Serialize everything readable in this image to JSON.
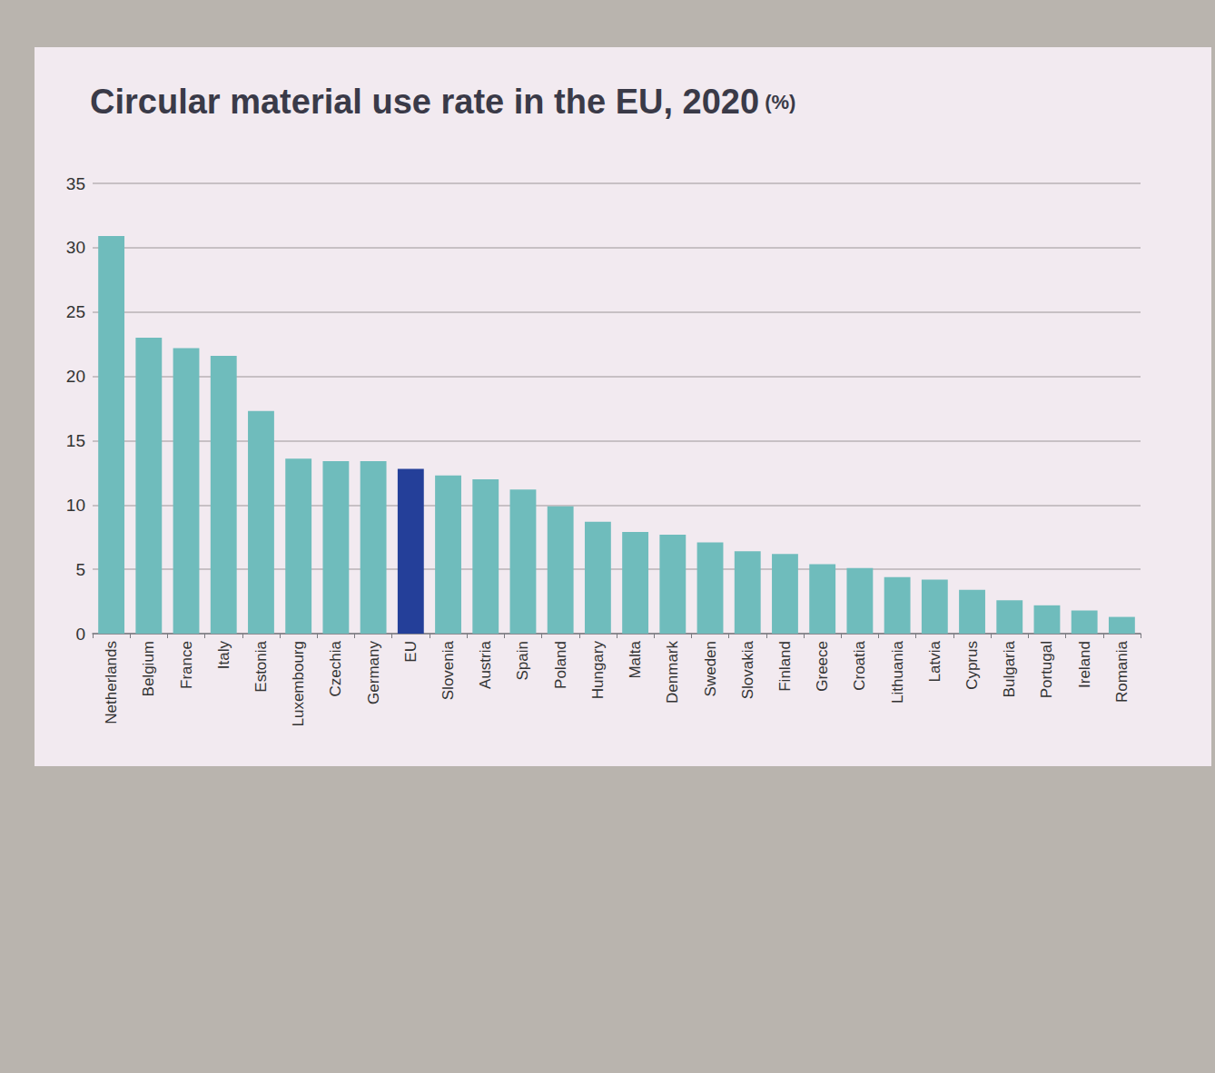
{
  "chart_data": {
    "type": "bar",
    "title": "Circular material use rate in the EU, 2020 (%)",
    "categories": [
      "Netherlands",
      "Belgium",
      "France",
      "Italy",
      "Estonia",
      "Luxembourg",
      "Czechia",
      "Germany",
      "EU",
      "Slovenia",
      "Austria",
      "Spain",
      "Poland",
      "Hungary",
      "Malta",
      "Denmark",
      "Sweden",
      "Slovakia",
      "Finland",
      "Greece",
      "Croatia",
      "Lithuania",
      "Latvia",
      "Cyprus",
      "Bulgaria",
      "Portugal",
      "Ireland",
      "Romania"
    ],
    "values": [
      30.9,
      23.0,
      22.2,
      21.6,
      17.3,
      13.6,
      13.4,
      13.4,
      12.8,
      12.3,
      12.0,
      11.2,
      9.9,
      8.7,
      7.9,
      7.7,
      7.1,
      6.4,
      6.2,
      5.4,
      5.1,
      4.4,
      4.2,
      3.4,
      2.6,
      2.2,
      1.8,
      1.3
    ],
    "colors": [
      "#6fbcbc",
      "#6fbcbc",
      "#6fbcbc",
      "#6fbcbc",
      "#6fbcbc",
      "#6fbcbc",
      "#6fbcbc",
      "#6fbcbc",
      "#243f99",
      "#6fbcbc",
      "#6fbcbc",
      "#6fbcbc",
      "#6fbcbc",
      "#6fbcbc",
      "#6fbcbc",
      "#6fbcbc",
      "#6fbcbc",
      "#6fbcbc",
      "#6fbcbc",
      "#6fbcbc",
      "#6fbcbc",
      "#6fbcbc",
      "#6fbcbc",
      "#6fbcbc",
      "#6fbcbc",
      "#6fbcbc",
      "#6fbcbc",
      "#6fbcbc"
    ],
    "ylim": [
      0,
      35
    ],
    "yticks": [
      0,
      5,
      10,
      15,
      20,
      25,
      30,
      35
    ],
    "grid": true,
    "data_labels": false
  }
}
